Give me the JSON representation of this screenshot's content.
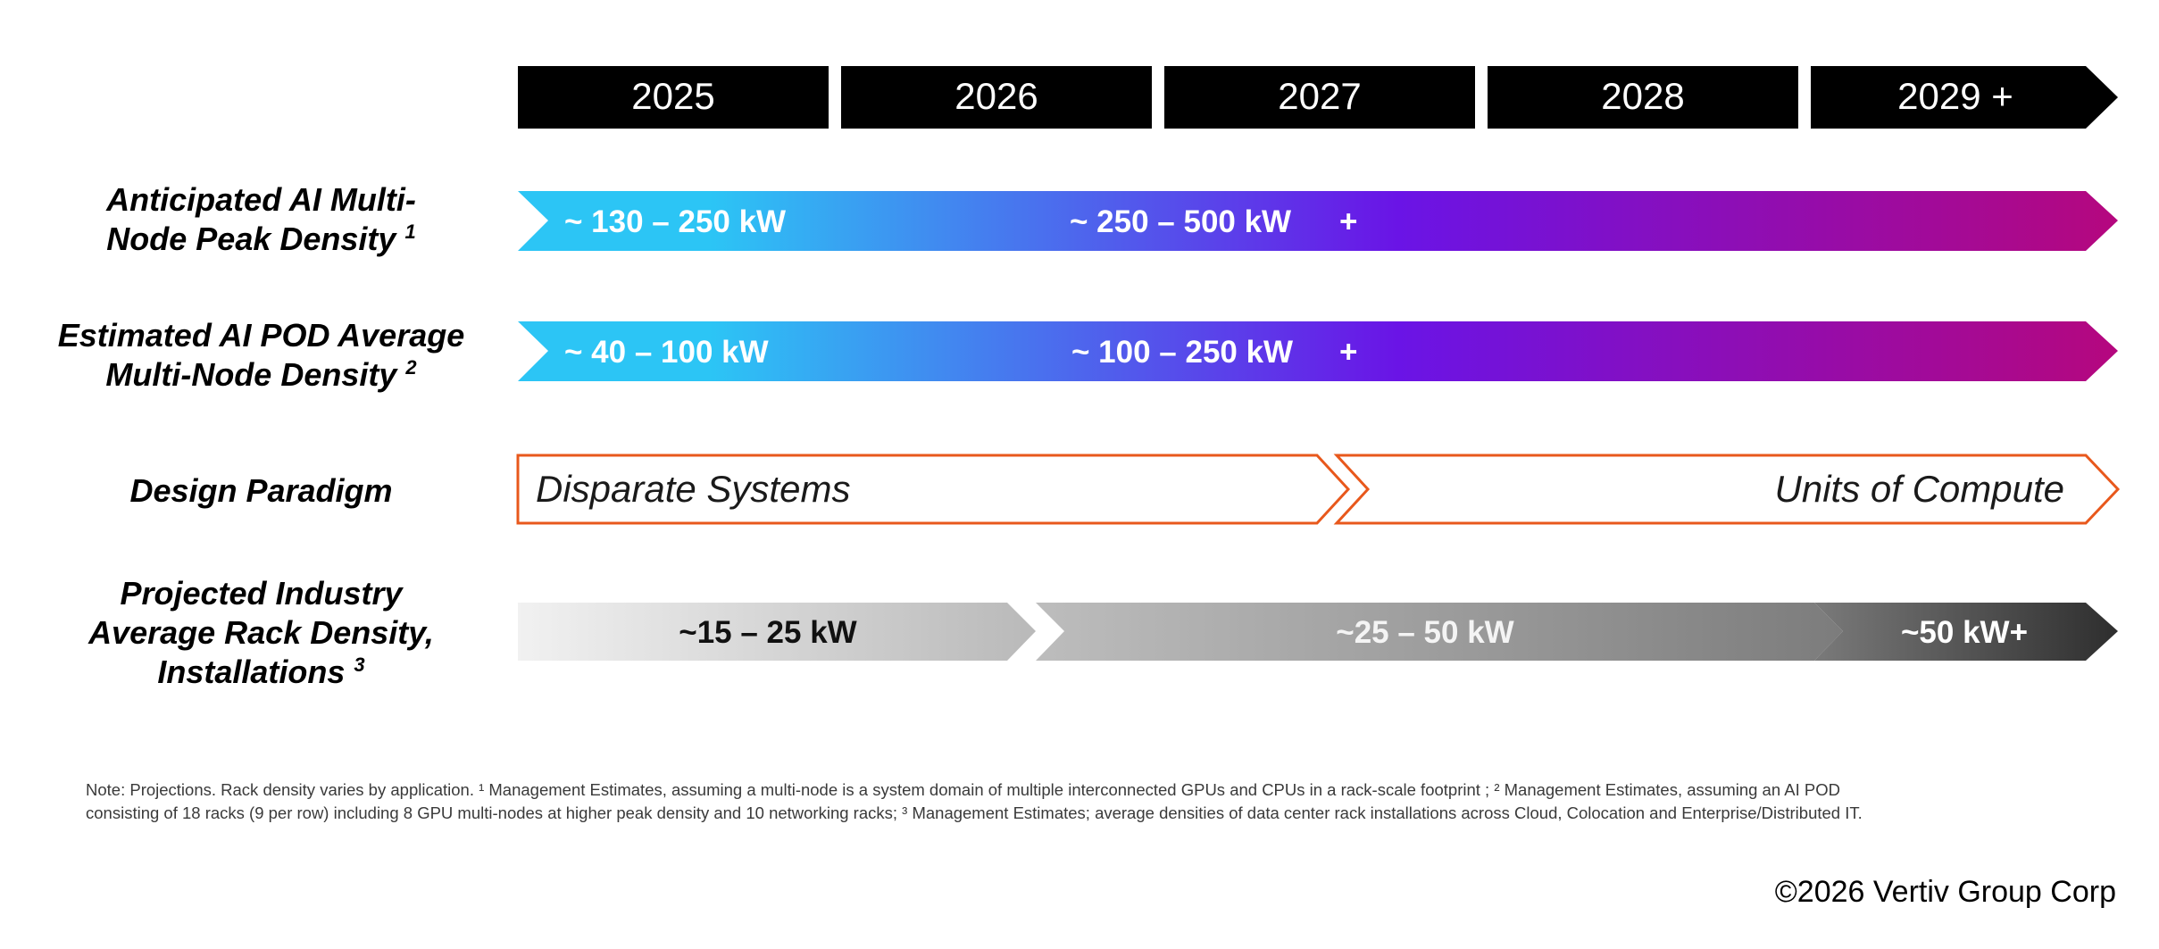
{
  "years": [
    "2025",
    "2026",
    "2027",
    "2028",
    "2029 +"
  ],
  "rows": {
    "peak_density": {
      "label_line1": "Anticipated AI Multi-",
      "label_line2": "Node Peak Density",
      "footnote": "1",
      "segments": [
        "~ 130 – 250 kW",
        "~ 250 – 500 kW",
        "+"
      ]
    },
    "pod_density": {
      "label_line1": "Estimated AI POD Average",
      "label_line2": "Multi-Node Density",
      "footnote": "2",
      "segments": [
        "~ 40 – 100 kW",
        "~ 100 – 250 kW",
        "+"
      ]
    },
    "design_paradigm": {
      "label": "Design Paradigm",
      "segments": [
        "Disparate Systems",
        "Units of Compute"
      ]
    },
    "rack_density": {
      "label_line1": "Projected Industry",
      "label_line2": "Average Rack Density,",
      "label_line3": "Installations",
      "footnote": "3",
      "segments": [
        "~15 – 25 kW",
        "~25 – 50 kW",
        "~50 kW+"
      ]
    }
  },
  "note_line1": "Note: Projections. Rack density varies by application. ¹ Management Estimates, assuming a multi-node is a system domain of multiple interconnected GPUs and CPUs in a rack-scale footprint ; ² Management Estimates, assuming an AI POD",
  "note_line2": "consisting of 18 racks (9 per row) including 8 GPU multi-nodes at higher peak density and 10 networking racks; ³ Management Estimates; average densities of data center rack installations across Cloud, Colocation and Enterprise/Distributed IT.",
  "copyright": "©2026 Vertiv Group Corp",
  "colors": {
    "year_bar": "#000000",
    "gradient_start": "#2cc5f5",
    "gradient_mid": "#6a14e6",
    "gradient_end": "#b5077e",
    "paradigm_outline": "#e8581c",
    "gray_light": "#f1f1f1",
    "gray_mid": "#9d9d9d",
    "gray_dark": "#3a3a3a"
  }
}
